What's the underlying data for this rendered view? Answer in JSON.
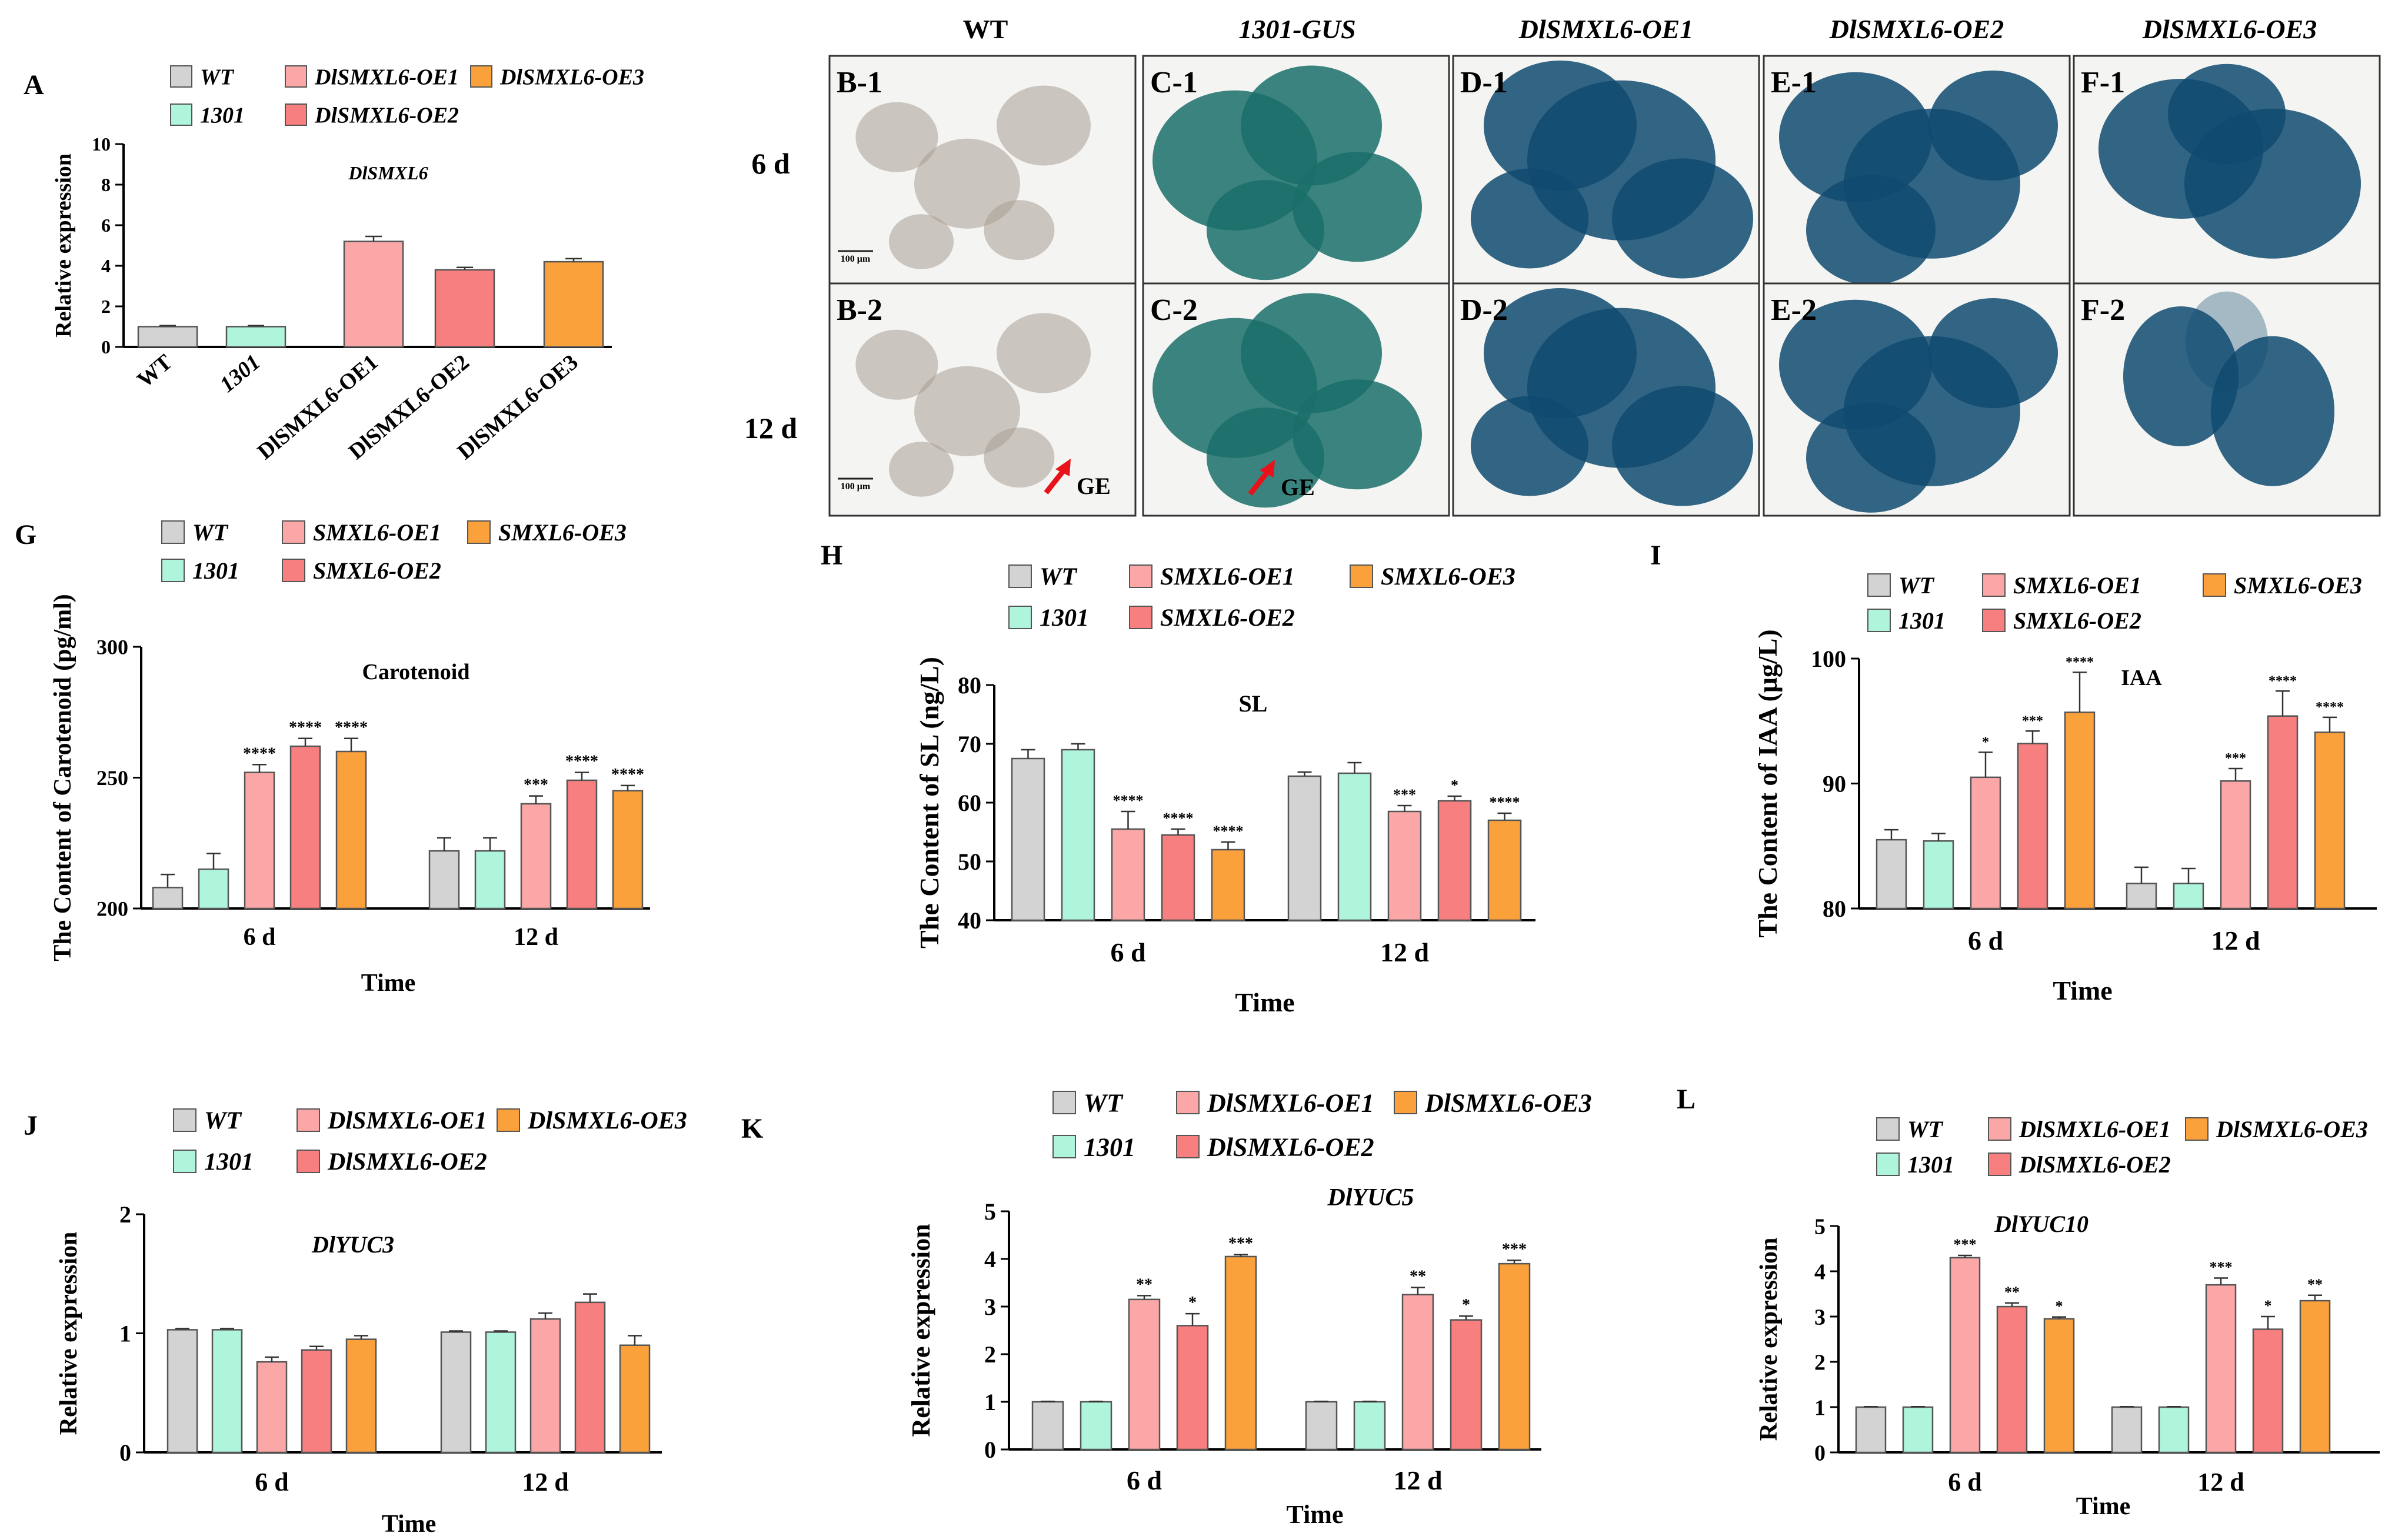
{
  "colors": {
    "WT": "#d3d3d3",
    "1301": "#aef5dc",
    "OE1": "#fba7a7",
    "OE2": "#f77f7f",
    "OE3": "#faa13c",
    "arrow": "#e8121b",
    "callus_wt": "#a79e94",
    "callus_gus": "#1a6e6a",
    "callus_blue": "#0f4a70"
  },
  "panels": {
    "A": {
      "letter": "A",
      "legend": [
        "WT",
        "1301",
        "DlSMXL6-OE1",
        "DlSMXL6-OE2",
        "DlSMXL6-OE3"
      ],
      "chart_data": {
        "type": "bar",
        "title": "DlSMXL6",
        "ylabel": "Relative expression",
        "xlabel": "",
        "categories": [
          "WT",
          "1301",
          "DlSMXL6-OE1",
          "DlSMXL6-OE2",
          "DlSMXL6-OE3"
        ],
        "values": [
          1.0,
          1.0,
          5.2,
          3.8,
          4.2
        ],
        "errors": [
          0.05,
          0.05,
          0.25,
          0.12,
          0.15
        ],
        "ylim": [
          0,
          10
        ],
        "yticks": [
          0,
          2,
          4,
          6,
          8,
          10
        ]
      }
    },
    "micro": {
      "col_headers": [
        "WT",
        "1301-GUS",
        "DlSMXL6-OE1",
        "DlSMXL6-OE2",
        "DlSMXL6-OE3"
      ],
      "row_headers": [
        "6 d",
        "12 d"
      ],
      "cells": [
        [
          "B-1",
          "C-1",
          "D-1",
          "E-1",
          "F-1"
        ],
        [
          "B-2",
          "C-2",
          "D-2",
          "E-2",
          "F-2"
        ]
      ],
      "scale_label": "100 μm",
      "arrow_label": "GE"
    },
    "G": {
      "letter": "G",
      "legend": [
        "WT",
        "1301",
        "SMXL6-OE1",
        "SMXL6-OE2",
        "SMXL6-OE3"
      ],
      "chart_data": {
        "type": "bar",
        "title": "Carotenoid",
        "ylabel": "The Content of Carotenoid (pg/ml)",
        "xlabel": "Time",
        "categories": [
          "6 d",
          "12 d"
        ],
        "series": [
          {
            "name": "WT",
            "values": [
              208,
              222
            ],
            "errors": [
              5,
              5
            ],
            "sig": [
              "",
              ""
            ]
          },
          {
            "name": "1301",
            "values": [
              215,
              222
            ],
            "errors": [
              6,
              5
            ],
            "sig": [
              "",
              ""
            ]
          },
          {
            "name": "SMXL6-OE1",
            "values": [
              252,
              240
            ],
            "errors": [
              3,
              3
            ],
            "sig": [
              "****",
              "***"
            ]
          },
          {
            "name": "SMXL6-OE2",
            "values": [
              262,
              249
            ],
            "errors": [
              3,
              3
            ],
            "sig": [
              "****",
              "****"
            ]
          },
          {
            "name": "SMXL6-OE3",
            "values": [
              260,
              245
            ],
            "errors": [
              5,
              2
            ],
            "sig": [
              "****",
              "****"
            ]
          }
        ],
        "ylim": [
          200,
          300
        ],
        "yticks": [
          200,
          250,
          300
        ]
      }
    },
    "H": {
      "letter": "H",
      "legend": [
        "WT",
        "1301",
        "SMXL6-OE1",
        "SMXL6-OE2",
        "SMXL6-OE3"
      ],
      "chart_data": {
        "type": "bar",
        "title": "SL",
        "ylabel": "The Content of SL (ng/L)",
        "xlabel": "Time",
        "categories": [
          "6 d",
          "12 d"
        ],
        "series": [
          {
            "name": "WT",
            "values": [
              67.5,
              64.5
            ],
            "errors": [
              1.5,
              0.7
            ],
            "sig": [
              "",
              ""
            ]
          },
          {
            "name": "1301",
            "values": [
              69,
              65
            ],
            "errors": [
              1.0,
              1.8
            ],
            "sig": [
              "",
              ""
            ]
          },
          {
            "name": "SMXL6-OE1",
            "values": [
              55.5,
              58.5
            ],
            "errors": [
              3.0,
              1.0
            ],
            "sig": [
              "****",
              "***"
            ]
          },
          {
            "name": "SMXL6-OE2",
            "values": [
              54.5,
              60.3
            ],
            "errors": [
              1.0,
              0.8
            ],
            "sig": [
              "****",
              "*"
            ]
          },
          {
            "name": "SMXL6-OE3",
            "values": [
              52,
              57
            ],
            "errors": [
              1.3,
              1.2
            ],
            "sig": [
              "****",
              "****"
            ]
          }
        ],
        "ylim": [
          40,
          80
        ],
        "yticks": [
          40,
          50,
          60,
          70,
          80
        ]
      }
    },
    "I": {
      "letter": "I",
      "legend": [
        "WT",
        "1301",
        "SMXL6-OE1",
        "SMXL6-OE2",
        "SMXL6-OE3"
      ],
      "chart_data": {
        "type": "bar",
        "title": "IAA",
        "ylabel": "The Content of IAA (μg/L)",
        "xlabel": "Time",
        "categories": [
          "6 d",
          "12 d"
        ],
        "series": [
          {
            "name": "WT",
            "values": [
              85.5,
              82
            ],
            "errors": [
              0.8,
              1.3
            ],
            "sig": [
              "",
              ""
            ]
          },
          {
            "name": "1301",
            "values": [
              85.4,
              82
            ],
            "errors": [
              0.6,
              1.2
            ],
            "sig": [
              "",
              ""
            ]
          },
          {
            "name": "SMXL6-OE1",
            "values": [
              90.5,
              90.2
            ],
            "errors": [
              2.0,
              1.0
            ],
            "sig": [
              "*",
              "***"
            ]
          },
          {
            "name": "SMXL6-OE2",
            "values": [
              93.2,
              95.4
            ],
            "errors": [
              1.0,
              2.0
            ],
            "sig": [
              "***",
              "****"
            ]
          },
          {
            "name": "SMXL6-OE3",
            "values": [
              95.7,
              94.1
            ],
            "errors": [
              3.2,
              1.2
            ],
            "sig": [
              "****",
              "****"
            ]
          }
        ],
        "ylim": [
          80,
          100
        ],
        "yticks": [
          80,
          90,
          100
        ]
      }
    },
    "J": {
      "letter": "J",
      "legend": [
        "WT",
        "1301",
        "DlSMXL6-OE1",
        "DlSMXL6-OE2",
        "DlSMXL6-OE3"
      ],
      "chart_data": {
        "type": "bar",
        "title": "DlYUC3",
        "ylabel": "Relative expression",
        "xlabel": "Time",
        "categories": [
          "6 d",
          "12 d"
        ],
        "series": [
          {
            "name": "WT",
            "values": [
              1.03,
              1.01
            ],
            "errors": [
              0.01,
              0.01
            ],
            "sig": [
              "",
              ""
            ]
          },
          {
            "name": "1301",
            "values": [
              1.03,
              1.01
            ],
            "errors": [
              0.01,
              0.01
            ],
            "sig": [
              "",
              ""
            ]
          },
          {
            "name": "DlSMXL6-OE1",
            "values": [
              0.76,
              1.12
            ],
            "errors": [
              0.04,
              0.05
            ],
            "sig": [
              "",
              ""
            ]
          },
          {
            "name": "DlSMXL6-OE2",
            "values": [
              0.86,
              1.26
            ],
            "errors": [
              0.03,
              0.07
            ],
            "sig": [
              "",
              ""
            ]
          },
          {
            "name": "DlSMXL6-OE3",
            "values": [
              0.95,
              0.9
            ],
            "errors": [
              0.03,
              0.08
            ],
            "sig": [
              "",
              ""
            ]
          }
        ],
        "ylim": [
          0,
          2
        ],
        "yticks": [
          0,
          1,
          2
        ]
      }
    },
    "K": {
      "letter": "K",
      "legend": [
        "WT",
        "1301",
        "DlSMXL6-OE1",
        "DlSMXL6-OE2",
        "DlSMXL6-OE3"
      ],
      "chart_data": {
        "type": "bar",
        "title": "DlYUC5",
        "ylabel": "Relative expression",
        "xlabel": "Time",
        "categories": [
          "6 d",
          "12 d"
        ],
        "series": [
          {
            "name": "WT",
            "values": [
              1.0,
              1.0
            ],
            "errors": [
              0.01,
              0.01
            ],
            "sig": [
              "",
              ""
            ]
          },
          {
            "name": "1301",
            "values": [
              1.0,
              1.0
            ],
            "errors": [
              0.01,
              0.01
            ],
            "sig": [
              "",
              ""
            ]
          },
          {
            "name": "DlSMXL6-OE1",
            "values": [
              3.15,
              3.25
            ],
            "errors": [
              0.08,
              0.15
            ],
            "sig": [
              "**",
              "**"
            ]
          },
          {
            "name": "DlSMXL6-OE2",
            "values": [
              2.6,
              2.72
            ],
            "errors": [
              0.25,
              0.08
            ],
            "sig": [
              "*",
              "*"
            ]
          },
          {
            "name": "DlSMXL6-OE3",
            "values": [
              4.05,
              3.9
            ],
            "errors": [
              0.04,
              0.07
            ],
            "sig": [
              "***",
              "***"
            ]
          }
        ],
        "ylim": [
          0,
          5
        ],
        "yticks": [
          0,
          1,
          2,
          3,
          4,
          5
        ]
      }
    },
    "L": {
      "letter": "L",
      "legend": [
        "WT",
        "1301",
        "DlSMXL6-OE1",
        "DlSMXL6-OE2",
        "DlSMXL6-OE3"
      ],
      "chart_data": {
        "type": "bar",
        "title": "DlYUC10",
        "ylabel": "Relative expression",
        "xlabel": "Time",
        "categories": [
          "6 d",
          "12 d"
        ],
        "series": [
          {
            "name": "WT",
            "values": [
              1.0,
              1.0
            ],
            "errors": [
              0.01,
              0.01
            ],
            "sig": [
              "",
              ""
            ]
          },
          {
            "name": "1301",
            "values": [
              1.0,
              1.0
            ],
            "errors": [
              0.01,
              0.01
            ],
            "sig": [
              "",
              ""
            ]
          },
          {
            "name": "DlSMXL6-OE1",
            "values": [
              4.3,
              3.7
            ],
            "errors": [
              0.05,
              0.15
            ],
            "sig": [
              "***",
              "***"
            ]
          },
          {
            "name": "DlSMXL6-OE2",
            "values": [
              3.22,
              2.72
            ],
            "errors": [
              0.08,
              0.28
            ],
            "sig": [
              "**",
              "*"
            ]
          },
          {
            "name": "DlSMXL6-OE3",
            "values": [
              2.95,
              3.35
            ],
            "errors": [
              0.04,
              0.12
            ],
            "sig": [
              "*",
              "**"
            ]
          }
        ],
        "ylim": [
          0,
          5
        ],
        "yticks": [
          0,
          1,
          2,
          3,
          4,
          5
        ]
      }
    }
  }
}
